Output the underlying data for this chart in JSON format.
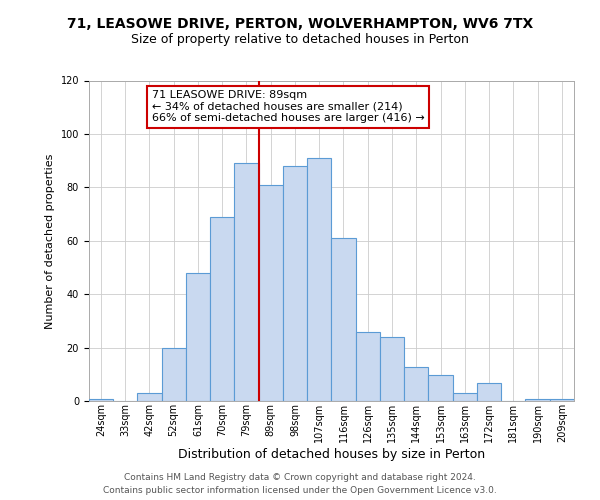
{
  "title": "71, LEASOWE DRIVE, PERTON, WOLVERHAMPTON, WV6 7TX",
  "subtitle": "Size of property relative to detached houses in Perton",
  "xlabel": "Distribution of detached houses by size in Perton",
  "ylabel": "Number of detached properties",
  "bin_labels": [
    "24sqm",
    "33sqm",
    "42sqm",
    "52sqm",
    "61sqm",
    "70sqm",
    "79sqm",
    "89sqm",
    "98sqm",
    "107sqm",
    "116sqm",
    "126sqm",
    "135sqm",
    "144sqm",
    "153sqm",
    "163sqm",
    "172sqm",
    "181sqm",
    "190sqm",
    "209sqm"
  ],
  "bar_values": [
    1,
    0,
    3,
    20,
    48,
    69,
    89,
    81,
    88,
    91,
    61,
    26,
    24,
    13,
    10,
    3,
    7,
    0,
    1,
    1
  ],
  "bar_color": "#c9d9f0",
  "bar_edge_color": "#5b9bd5",
  "vline_x_index": 7,
  "vline_color": "#cc0000",
  "annotation_title": "71 LEASOWE DRIVE: 89sqm",
  "annotation_line1": "← 34% of detached houses are smaller (214)",
  "annotation_line2": "66% of semi-detached houses are larger (416) →",
  "annotation_box_color": "#ffffff",
  "annotation_box_edge": "#cc0000",
  "ylim": [
    0,
    120
  ],
  "yticks": [
    0,
    20,
    40,
    60,
    80,
    100,
    120
  ],
  "footer1": "Contains HM Land Registry data © Crown copyright and database right 2024.",
  "footer2": "Contains public sector information licensed under the Open Government Licence v3.0.",
  "title_fontsize": 10,
  "subtitle_fontsize": 9,
  "xlabel_fontsize": 9,
  "ylabel_fontsize": 8,
  "tick_fontsize": 7,
  "annotation_fontsize": 8,
  "footer_fontsize": 6.5
}
